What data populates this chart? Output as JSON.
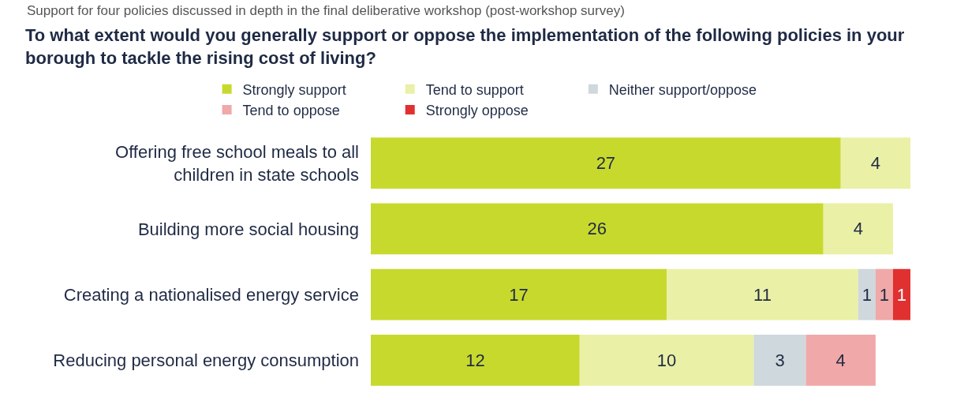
{
  "chart_data": {
    "type": "bar",
    "orientation": "horizontal",
    "stacked": true,
    "title": "To what extent would you generally support or oppose the implementation of the following policies in your borough to tackle the rising cost of living?",
    "annotations": [
      "Support for four policies discussed in depth in the final deliberative workshop (post-workshop survey)"
    ],
    "categories": [
      "Offering free school meals to all children in state schools",
      "Building more social housing",
      "Creating a nationalised energy service",
      "Reducing personal energy consumption"
    ],
    "series": [
      {
        "name": "Strongly support",
        "color": "#c8d92e",
        "values": [
          27,
          26,
          17,
          12
        ]
      },
      {
        "name": "Tend to support",
        "color": "#eaf0a6",
        "values": [
          4,
          4,
          11,
          10
        ]
      },
      {
        "name": "Neither support/oppose",
        "color": "#cfd8dc",
        "values": [
          null,
          null,
          1,
          3
        ]
      },
      {
        "name": "Tend to oppose",
        "color": "#f0a8a8",
        "values": [
          null,
          null,
          1,
          4
        ]
      },
      {
        "name": "Strongly oppose",
        "color": "#e03030",
        "values": [
          null,
          null,
          1,
          null
        ]
      }
    ],
    "tick_labels": "y",
    "legend": "top",
    "data_labels": true
  }
}
